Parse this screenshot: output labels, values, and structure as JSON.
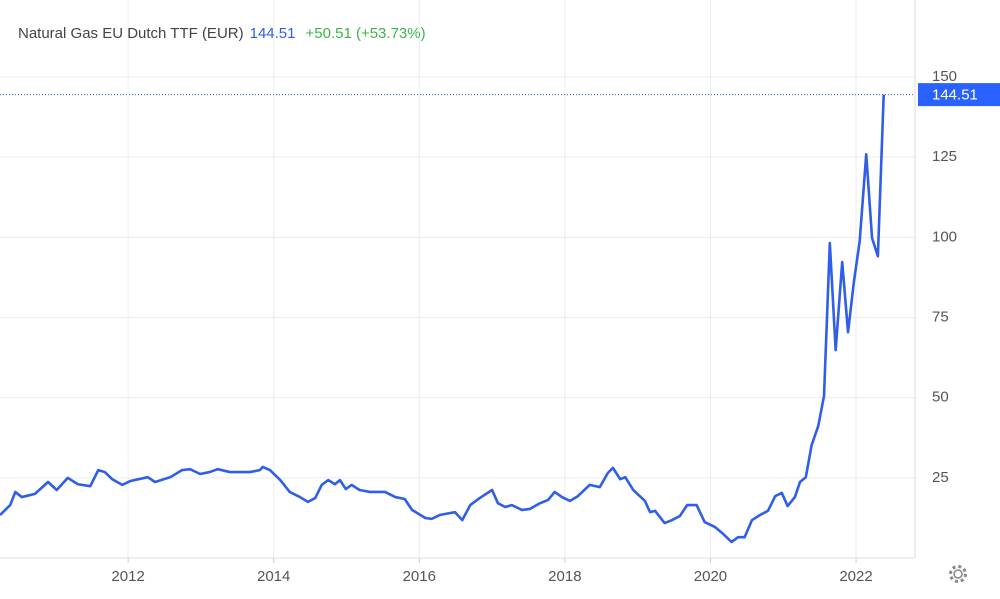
{
  "chart_data": {
    "type": "line",
    "title": "Natural Gas EU Dutch TTF (EUR)",
    "change": "+50.51 (+53.73%)",
    "x": [
      2010.24,
      2010.38,
      2010.45,
      2010.54,
      2010.72,
      2010.9,
      2011.02,
      2011.17,
      2011.31,
      2011.48,
      2011.59,
      2011.68,
      2011.78,
      2011.92,
      2012.03,
      2012.27,
      2012.37,
      2012.58,
      2012.74,
      2012.85,
      2012.99,
      2013.12,
      2013.23,
      2013.4,
      2013.67,
      2013.81,
      2013.85,
      2013.95,
      2014.09,
      2014.22,
      2014.36,
      2014.47,
      2014.57,
      2014.66,
      2014.75,
      2014.84,
      2014.91,
      2014.99,
      2015.07,
      2015.18,
      2015.32,
      2015.53,
      2015.67,
      2015.8,
      2015.9,
      2016.08,
      2016.17,
      2016.28,
      2016.49,
      2016.59,
      2016.7,
      2016.83,
      2017.0,
      2017.08,
      2017.18,
      2017.27,
      2017.41,
      2017.52,
      2017.66,
      2017.77,
      2017.86,
      2017.96,
      2018.07,
      2018.18,
      2018.34,
      2018.48,
      2018.59,
      2018.66,
      2018.76,
      2018.83,
      2018.94,
      2019.1,
      2019.17,
      2019.24,
      2019.37,
      2019.47,
      2019.58,
      2019.68,
      2019.81,
      2019.92,
      2020.06,
      2020.16,
      2020.29,
      2020.38,
      2020.47,
      2020.57,
      2020.68,
      2020.79,
      2020.89,
      2020.98,
      2021.06,
      2021.16,
      2021.23,
      2021.31,
      2021.39,
      2021.48,
      2021.56,
      2021.64,
      2021.72,
      2021.81,
      2021.89,
      2021.97,
      2022.05,
      2022.14,
      2022.22,
      2022.3,
      2022.38
    ],
    "series": [
      {
        "name": "Natural Gas EU Dutch TTF",
        "color": "#2f5ee8",
        "values": [
          13.4,
          16.5,
          20.6,
          19,
          20,
          23.7,
          21.2,
          25,
          23,
          22.4,
          27.4,
          26.8,
          24.6,
          22.8,
          24,
          25.2,
          23.7,
          25.2,
          27.4,
          27.7,
          26.2,
          26.8,
          27.7,
          26.8,
          26.8,
          27.4,
          28.4,
          27.4,
          24.3,
          20.6,
          19,
          17.5,
          18.7,
          22.8,
          24.3,
          23,
          24.3,
          21.5,
          22.8,
          21.2,
          20.6,
          20.6,
          19,
          18.4,
          15,
          12.5,
          12.2,
          13.4,
          14.3,
          11.8,
          16.5,
          18.7,
          21.2,
          17.1,
          15.9,
          16.5,
          15,
          15.3,
          17.1,
          18.1,
          20.6,
          19,
          17.8,
          19.3,
          22.8,
          22.1,
          26.5,
          28.1,
          24.6,
          25.2,
          21.2,
          17.8,
          14.3,
          14.7,
          10.9,
          11.8,
          13.1,
          16.5,
          16.5,
          11.2,
          9.7,
          7.8,
          5,
          6.5,
          6.5,
          11.8,
          13.4,
          14.7,
          19.3,
          20.3,
          16.2,
          19,
          23.7,
          25.2,
          35.2,
          41.1,
          50.5,
          98.2,
          64.8,
          92.3,
          70.4,
          86,
          98.8,
          125.9,
          99.8,
          94.1,
          144.51
        ]
      }
    ],
    "xlim": [
      2010.24,
      2022.81
    ],
    "xticks": [
      2012,
      2014,
      2016,
      2018,
      2020,
      2022
    ],
    "ylim": [
      0,
      150
    ],
    "yticks": [
      25,
      50,
      75,
      100,
      125,
      150
    ],
    "grid": true
  }
}
